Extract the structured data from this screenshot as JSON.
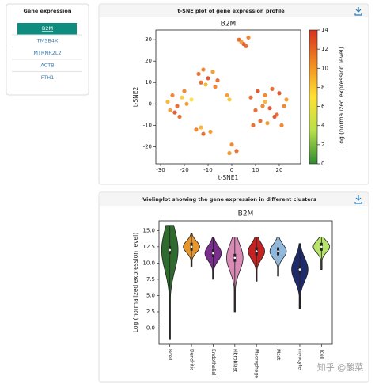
{
  "sidebar": {
    "title": "Gene expression",
    "items": [
      "B2M",
      "TMSB4X",
      "MTRNR2L2",
      "ACTB",
      "FTH1"
    ]
  },
  "tsne_panel": {
    "header": "t-SNE plot of gene expression profile",
    "chart": {
      "type": "scatter",
      "title": "B2M",
      "x_label": "t-SNE1",
      "y_label": "t-SNE2",
      "xlim": [
        -32,
        29
      ],
      "ylim": [
        -28,
        34.5
      ],
      "xticks": [
        -30,
        -20,
        -10,
        0,
        10,
        20
      ],
      "yticks": [
        -20,
        -10,
        0,
        10,
        20,
        30
      ],
      "x": [
        3,
        5,
        7,
        6,
        4,
        -27,
        -25,
        -23,
        -21,
        -19,
        -24,
        -20,
        -17,
        -26,
        -22,
        -14,
        -12,
        -10,
        -8,
        -6,
        -11,
        -7,
        -13,
        -2,
        -1,
        -15,
        -12,
        -9,
        -13,
        8,
        11,
        14,
        17,
        20,
        23,
        10,
        13,
        16,
        19,
        22,
        12,
        15,
        18,
        21,
        9,
        14,
        0,
        2,
        -1
      ],
      "y": [
        30,
        28,
        31,
        27,
        29,
        1,
        4,
        -1,
        3,
        0,
        -4,
        6,
        2,
        -3,
        -6,
        14,
        16,
        12,
        15,
        11,
        9,
        8,
        10,
        4,
        2,
        -12,
        -14,
        -13,
        -11,
        3,
        6,
        4,
        7,
        5,
        2,
        -3,
        -1,
        -2,
        -5,
        -1,
        -8,
        -9,
        -6,
        -10,
        -10,
        1,
        -19,
        -22,
        -23
      ],
      "values": [
        12,
        13,
        11,
        12,
        10,
        9,
        11,
        12,
        8,
        10,
        13,
        11,
        7,
        10,
        12,
        12,
        11,
        13,
        10,
        12,
        9,
        11,
        12,
        10,
        8,
        11,
        12,
        10,
        9,
        12,
        13,
        11,
        12,
        13,
        10,
        12,
        11,
        13,
        12,
        11,
        12,
        10,
        13,
        11,
        12,
        9,
        11,
        12,
        10
      ],
      "colorbar": {
        "label": "Log (normalized expression level)",
        "lim": [
          0,
          14
        ],
        "ticks": [
          0,
          2,
          4,
          6,
          8,
          10,
          12,
          14
        ],
        "colors": [
          "#2e8b2e",
          "#b8e04a",
          "#ffe135",
          "#f28a1f",
          "#d7301f"
        ]
      }
    }
  },
  "violin_panel": {
    "header": "Violinplot showing the gene expression in different clusters",
    "chart": {
      "type": "violin",
      "title": "B2M",
      "y_label": "Log (normalized expression level)",
      "categories": [
        "Bcell",
        "Dendritic",
        "Endothelial",
        "Fibroblast",
        "Macrophage",
        "Mast",
        "myocyte",
        "Tcell"
      ],
      "colors": [
        "#2f6b2f",
        "#e8952a",
        "#7b2d8e",
        "#d98bb5",
        "#c42222",
        "#8fb8de",
        "#1f2a6b",
        "#b7e36a"
      ],
      "min": [
        -1.8,
        9.5,
        7.5,
        2.5,
        7.2,
        8,
        3,
        9
      ],
      "max": [
        15.8,
        14.5,
        14,
        14,
        14,
        14,
        13,
        14
      ],
      "median": [
        12,
        12.5,
        11.5,
        10.8,
        11.8,
        11.8,
        9,
        12.5
      ],
      "ylim": [
        -2.5,
        16.5
      ],
      "yticks": [
        {
          "value": 0,
          "label": "0.0"
        },
        2.5,
        {
          "value": 5,
          "label": "5.0"
        },
        7.5,
        {
          "value": 10,
          "label": "10.0"
        },
        12.5,
        {
          "value": 15,
          "label": "15.0"
        }
      ]
    }
  },
  "watermark": "知乎 @酸菜"
}
